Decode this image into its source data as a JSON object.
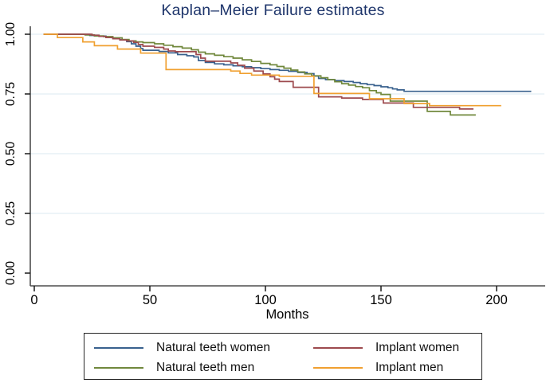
{
  "title": "Kaplan–Meier Failure estimates",
  "colors": {
    "title": "#1e356b",
    "grid": "#e7f0f5",
    "axis": "#4d4d4d",
    "tick": "#1a1a1a",
    "legend_border": "#262626"
  },
  "chart_data": {
    "type": "line",
    "subtype": "step-after",
    "title": "Kaplan–Meier Failure estimates",
    "xlabel": "Months",
    "ylabel": "",
    "xlim": [
      0,
      220
    ],
    "ylim": [
      0.0,
      1.0
    ],
    "x_ticks": [
      0,
      50,
      100,
      150,
      200
    ],
    "y_ticks": [
      0.0,
      0.25,
      0.5,
      0.75,
      1.0
    ],
    "y_tick_labels": [
      "0.00",
      "0.25",
      "0.50",
      "0.75",
      "1.00"
    ],
    "grid": "horizontal",
    "legend_position": "bottom",
    "legend_columns": [
      [
        0,
        1
      ],
      [
        2,
        3
      ]
    ],
    "series": [
      {
        "name": "Natural teeth women",
        "color": "#39618e",
        "points": [
          [
            4,
            1.0
          ],
          [
            24,
            0.995
          ],
          [
            28,
            0.992
          ],
          [
            31,
            0.988
          ],
          [
            34,
            0.983
          ],
          [
            37,
            0.977
          ],
          [
            40,
            0.969
          ],
          [
            42,
            0.96
          ],
          [
            44,
            0.95
          ],
          [
            46,
            0.94
          ],
          [
            47,
            0.933
          ],
          [
            54,
            0.928
          ],
          [
            58,
            0.922
          ],
          [
            62,
            0.915
          ],
          [
            66,
            0.91
          ],
          [
            69,
            0.905
          ],
          [
            71,
            0.89
          ],
          [
            74,
            0.882
          ],
          [
            78,
            0.876
          ],
          [
            82,
            0.872
          ],
          [
            86,
            0.868
          ],
          [
            90,
            0.864
          ],
          [
            94,
            0.86
          ],
          [
            98,
            0.856
          ],
          [
            102,
            0.852
          ],
          [
            106,
            0.849
          ],
          [
            110,
            0.845
          ],
          [
            114,
            0.84
          ],
          [
            118,
            0.835
          ],
          [
            121,
            0.825
          ],
          [
            123,
            0.815
          ],
          [
            126,
            0.81
          ],
          [
            130,
            0.806
          ],
          [
            134,
            0.802
          ],
          [
            138,
            0.798
          ],
          [
            141,
            0.793
          ],
          [
            144,
            0.789
          ],
          [
            147,
            0.785
          ],
          [
            150,
            0.78
          ],
          [
            153,
            0.776
          ],
          [
            155,
            0.771
          ],
          [
            157,
            0.767
          ],
          [
            160,
            0.761
          ],
          [
            215,
            0.761
          ]
        ]
      },
      {
        "name": "Natural teeth men",
        "color": "#70883c",
        "points": [
          [
            4,
            1.0
          ],
          [
            22,
            0.997
          ],
          [
            26,
            0.993
          ],
          [
            30,
            0.99
          ],
          [
            34,
            0.985
          ],
          [
            38,
            0.978
          ],
          [
            41,
            0.972
          ],
          [
            44,
            0.968
          ],
          [
            47,
            0.965
          ],
          [
            52,
            0.96
          ],
          [
            56,
            0.954
          ],
          [
            60,
            0.948
          ],
          [
            64,
            0.942
          ],
          [
            68,
            0.935
          ],
          [
            71,
            0.925
          ],
          [
            74,
            0.918
          ],
          [
            78,
            0.912
          ],
          [
            82,
            0.906
          ],
          [
            86,
            0.9
          ],
          [
            90,
            0.893
          ],
          [
            94,
            0.886
          ],
          [
            98,
            0.878
          ],
          [
            102,
            0.872
          ],
          [
            105,
            0.865
          ],
          [
            108,
            0.858
          ],
          [
            111,
            0.85
          ],
          [
            114,
            0.842
          ],
          [
            117,
            0.834
          ],
          [
            120,
            0.826
          ],
          [
            124,
            0.818
          ],
          [
            127,
            0.81
          ],
          [
            130,
            0.801
          ],
          [
            133,
            0.793
          ],
          [
            136,
            0.787
          ],
          [
            139,
            0.781
          ],
          [
            142,
            0.776
          ],
          [
            145,
            0.764
          ],
          [
            148,
            0.755
          ],
          [
            150,
            0.748
          ],
          [
            154,
            0.72
          ],
          [
            170,
            0.677
          ],
          [
            180,
            0.662
          ],
          [
            191,
            0.662
          ]
        ]
      },
      {
        "name": "Implant women",
        "color": "#9d4a4e",
        "points": [
          [
            4,
            1.0
          ],
          [
            25,
            0.996
          ],
          [
            28,
            0.991
          ],
          [
            31,
            0.986
          ],
          [
            34,
            0.981
          ],
          [
            37,
            0.976
          ],
          [
            40,
            0.972
          ],
          [
            43,
            0.966
          ],
          [
            45,
            0.957
          ],
          [
            47,
            0.95
          ],
          [
            52,
            0.945
          ],
          [
            56,
            0.938
          ],
          [
            58,
            0.93
          ],
          [
            61,
            0.927
          ],
          [
            70,
            0.915
          ],
          [
            72,
            0.9
          ],
          [
            74,
            0.887
          ],
          [
            85,
            0.88
          ],
          [
            88,
            0.87
          ],
          [
            91,
            0.858
          ],
          [
            95,
            0.846
          ],
          [
            99,
            0.834
          ],
          [
            102,
            0.822
          ],
          [
            104,
            0.812
          ],
          [
            106,
            0.802
          ],
          [
            112,
            0.778
          ],
          [
            123,
            0.738
          ],
          [
            133,
            0.733
          ],
          [
            142,
            0.727
          ],
          [
            151,
            0.712
          ],
          [
            164,
            0.694
          ],
          [
            184,
            0.687
          ],
          [
            190,
            0.687
          ]
        ]
      },
      {
        "name": "Implant men",
        "color": "#f0a030",
        "points": [
          [
            4,
            1.0
          ],
          [
            10,
            0.986
          ],
          [
            21,
            0.968
          ],
          [
            26,
            0.952
          ],
          [
            36,
            0.938
          ],
          [
            46,
            0.921
          ],
          [
            57,
            0.852
          ],
          [
            85,
            0.846
          ],
          [
            89,
            0.836
          ],
          [
            94,
            0.829
          ],
          [
            106,
            0.824
          ],
          [
            121,
            0.752
          ],
          [
            145,
            0.73
          ],
          [
            160,
            0.71
          ],
          [
            171,
            0.701
          ],
          [
            202,
            0.701
          ]
        ]
      }
    ]
  }
}
